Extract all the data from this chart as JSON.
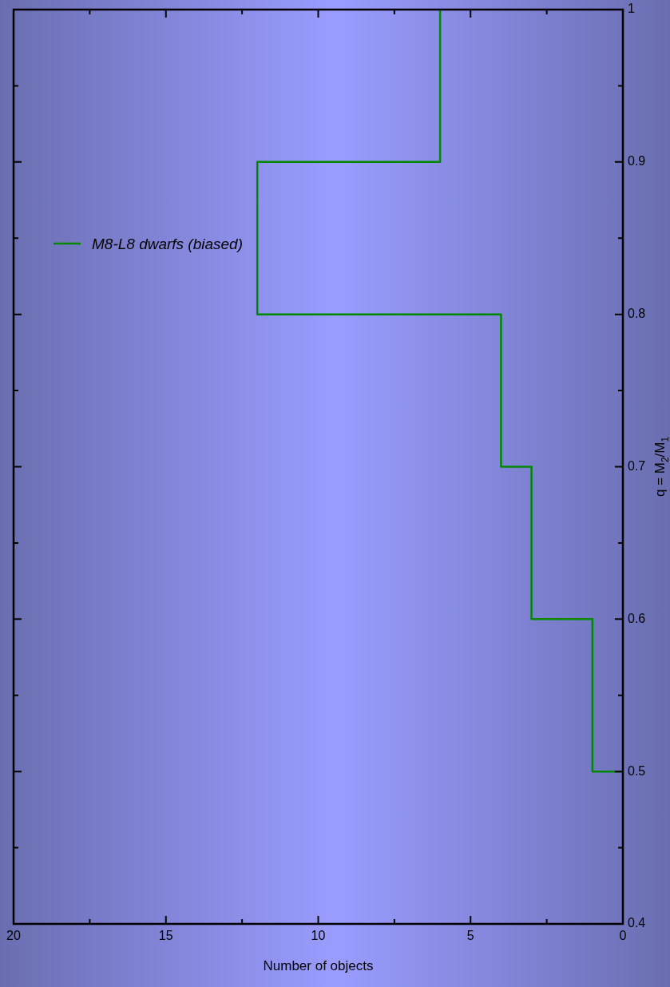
{
  "chart_data": {
    "type": "histogram",
    "orientation": "horizontal",
    "xlabel": "Number of objects",
    "ylabel": "q = M$_{2}$/M$_{1}$",
    "bins": [
      0.5,
      0.6,
      0.7,
      0.8,
      0.9,
      1.0
    ],
    "series": [
      {
        "name": "M8-L8 dwarfs (biased)",
        "color": "#008800",
        "values": [
          1,
          3,
          4,
          12,
          6
        ]
      }
    ],
    "xlim": [
      20,
      0
    ],
    "xticks": [
      0,
      {
        "value": 2.5,
        "label": null
      },
      5,
      {
        "value": 7.5,
        "label": null
      },
      10,
      {
        "value": 12.5,
        "label": null
      },
      15,
      {
        "value": 17.5,
        "label": null
      },
      20
    ],
    "ylim": [
      0.4,
      1.0
    ],
    "yticks": [
      0.4,
      {
        "value": 0.45,
        "label": null
      },
      0.5,
      {
        "value": 0.55,
        "label": null
      },
      0.6,
      {
        "value": 0.65,
        "label": null
      },
      0.7,
      {
        "value": 0.75,
        "label": null
      },
      0.8,
      {
        "value": 0.85,
        "label": null
      },
      0.9,
      {
        "value": 0.95,
        "label": null
      },
      1
    ],
    "grid": false,
    "legend": "top left"
  }
}
